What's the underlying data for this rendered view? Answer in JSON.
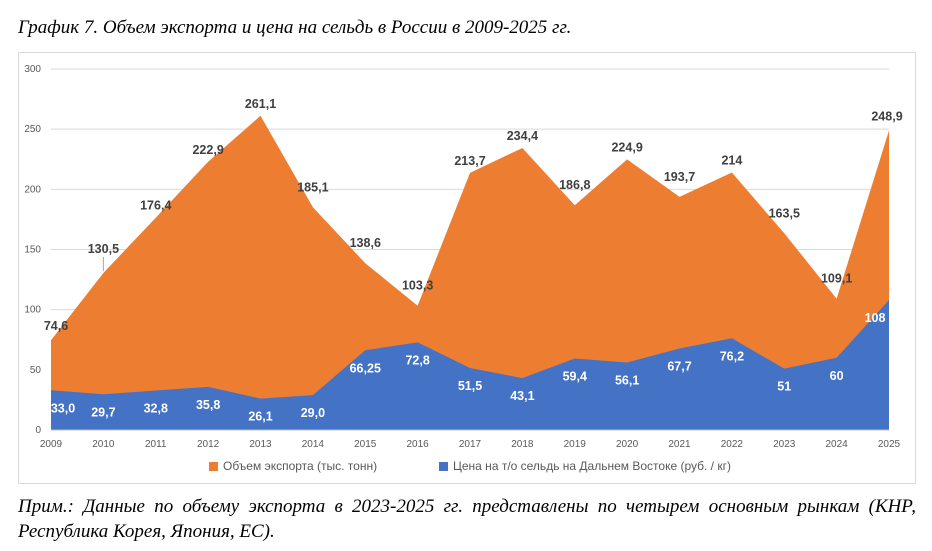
{
  "title": "График 7. Объем экспорта и цена на сельдь в России в 2009-2025 гг.",
  "note": "Прим.: Данные по объему экспорта в 2023-2025 гг. представлены по четырем основным рынкам (КНР, Республика Корея, Япония, ЕС).",
  "colors": {
    "export": "#ed7d31",
    "price": "#4472c4",
    "grid": "#d9d9d9"
  },
  "chart_data": {
    "type": "area",
    "categories": [
      "2009",
      "2010",
      "2011",
      "2012",
      "2013",
      "2014",
      "2015",
      "2016",
      "2017",
      "2018",
      "2019",
      "2020",
      "2021",
      "2022",
      "2023",
      "2024",
      "2025"
    ],
    "ylim": [
      0,
      300
    ],
    "yticks": [
      "0",
      "50",
      "100",
      "150",
      "200",
      "250",
      "300"
    ],
    "grid": true,
    "legend": "bottom",
    "series": [
      {
        "name": "Объем экспорта (тыс. тонн)",
        "values": [
          74.6,
          130.5,
          176.4,
          222.9,
          261.1,
          185.1,
          138.6,
          103.3,
          213.7,
          234.4,
          186.8,
          224.9,
          193.7,
          214,
          163.5,
          109.1,
          248.9
        ],
        "labels": [
          "74,6",
          "130,5",
          "176,4",
          "222,9",
          "261,1",
          "185,1",
          "138,6",
          "103,3",
          "213,7",
          "234,4",
          "186,8",
          "224,9",
          "193,7",
          "214",
          "163,5",
          "109,1",
          "248,9"
        ]
      },
      {
        "name": "Цена на т/о сельдь на Дальнем Востоке (руб. / кг)",
        "values": [
          33.0,
          29.7,
          32.8,
          35.8,
          26.1,
          29.0,
          66.25,
          72.8,
          51.5,
          43.1,
          59.4,
          56.1,
          67.7,
          76.2,
          51,
          60,
          108
        ],
        "labels": [
          "33,0",
          "29,7",
          "32,8",
          "35,8",
          "26,1",
          "29,0",
          "66,25",
          "72,8",
          "51,5",
          "43,1",
          "59,4",
          "56,1",
          "67,7",
          "76,2",
          "51",
          "60",
          "108"
        ]
      }
    ]
  }
}
